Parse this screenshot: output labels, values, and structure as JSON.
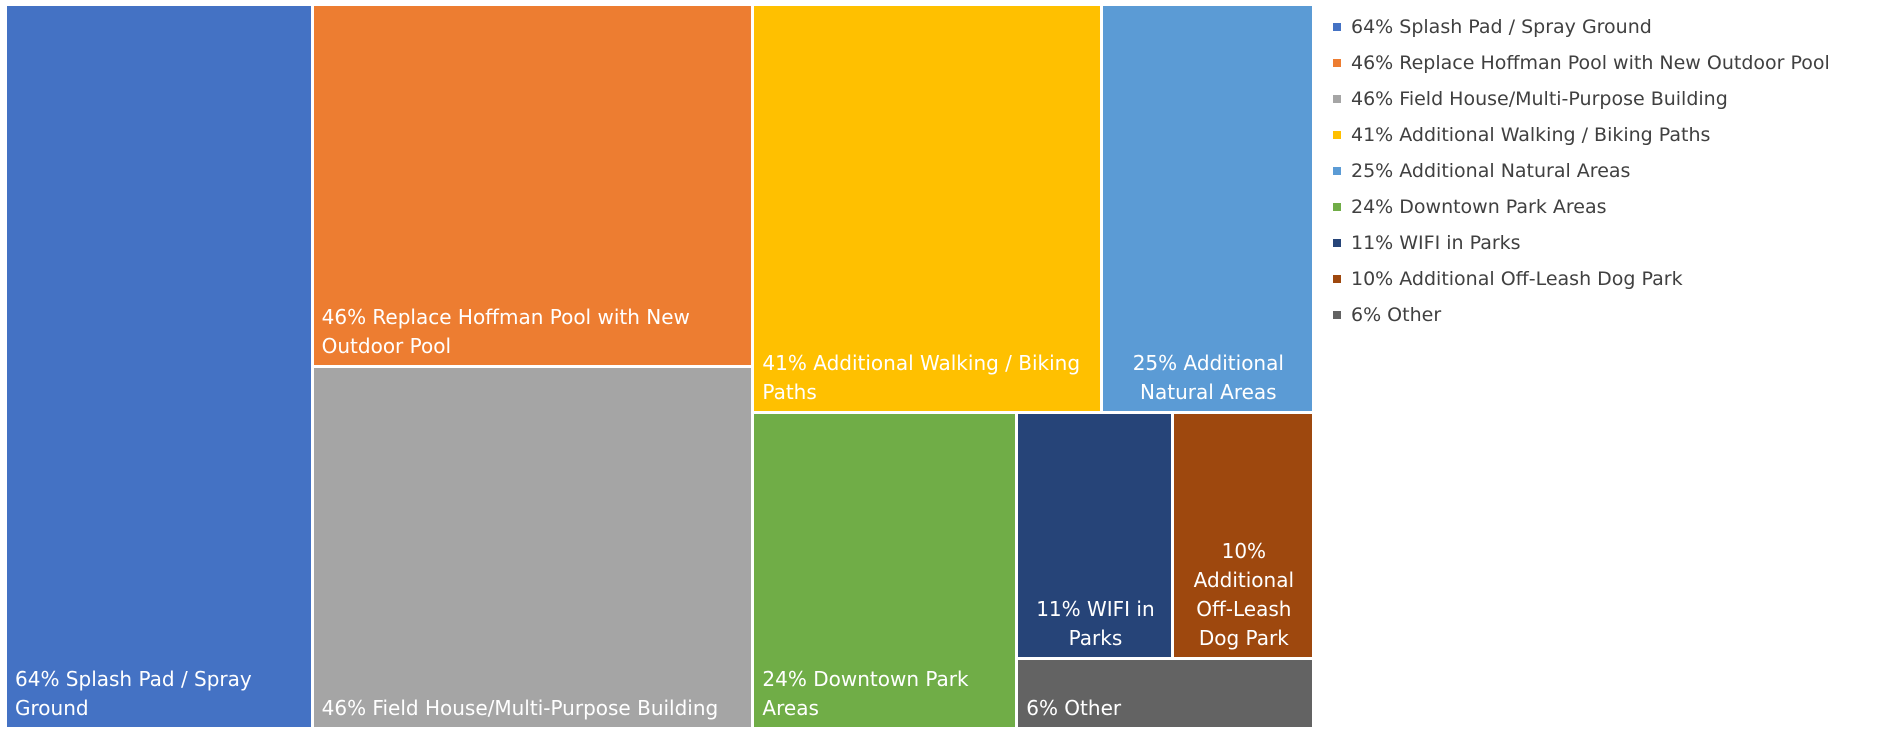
{
  "chart_data": {
    "type": "treemap",
    "categories": [
      "64% Splash Pad / Spray Ground",
      "46% Replace Hoffman Pool with New Outdoor Pool",
      "46% Field House/Multi-Purpose Building",
      "41% Additional Walking / Biking Paths",
      "25% Additional Natural Areas",
      "24% Downtown Park Areas",
      "11% WIFI in Parks",
      "10% Additional Off-Leash Dog Park",
      "6% Other"
    ],
    "values": [
      64,
      46,
      46,
      41,
      25,
      24,
      11,
      10,
      6
    ],
    "colors": [
      "#4472c4",
      "#ed7d31",
      "#a5a5a5",
      "#ffc000",
      "#5b9bd5",
      "#70ad47",
      "#264478",
      "#9e480e",
      "#636363"
    ],
    "legend": "right"
  }
}
